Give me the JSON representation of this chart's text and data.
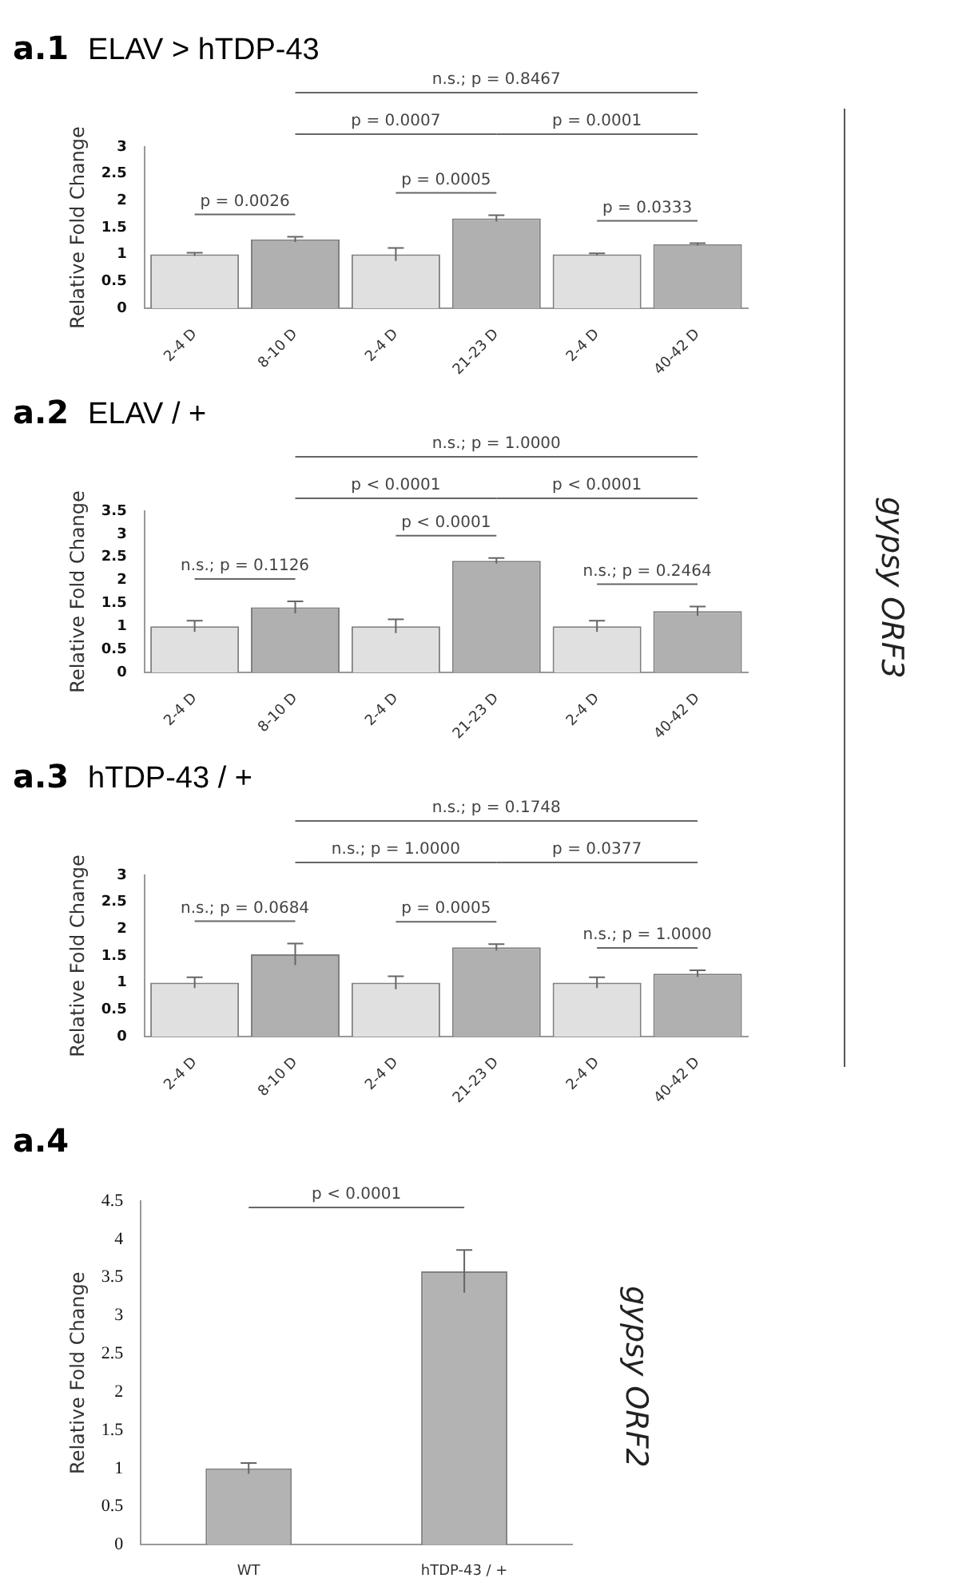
{
  "chart_data": [
    {
      "type": "bar",
      "title": "a.1",
      "subtitle": "ELAV > hTDP-43",
      "ylabel": "Relative Fold Change",
      "categories": [
        "2-4 D",
        "8-10 D",
        "2-4 D",
        "21-23 D",
        "2-4 D",
        "40-42 D"
      ],
      "values": [
        1.0,
        1.28,
        1.0,
        1.67,
        1.0,
        1.19
      ],
      "errors": [
        0.03,
        0.05,
        0.12,
        0.06,
        0.02,
        0.02
      ],
      "colors": [
        "#e0e0e0",
        "#b0b0b0",
        "#e0e0e0",
        "#b0b0b0",
        "#e0e0e0",
        "#b0b0b0"
      ],
      "ylim": [
        0,
        3
      ],
      "yticks": [
        0,
        0.5,
        1,
        1.5,
        2,
        2.5,
        3
      ],
      "annotations": [
        "n.s.; p = 0.8467",
        "p = 0.0007",
        "p = 0.0001",
        "p = 0.0005",
        "p = 0.0026",
        "p = 0.0333"
      ]
    },
    {
      "type": "bar",
      "title": "a.2",
      "subtitle": "ELAV / +",
      "ylabel": "Relative Fold Change",
      "categories": [
        "2-4 D",
        "8-10 D",
        "2-4 D",
        "21-23 D",
        "2-4 D",
        "40-42 D"
      ],
      "values": [
        1.0,
        1.41,
        1.0,
        2.42,
        1.0,
        1.33
      ],
      "errors": [
        0.12,
        0.13,
        0.15,
        0.06,
        0.12,
        0.1
      ],
      "colors": [
        "#e0e0e0",
        "#b0b0b0",
        "#e0e0e0",
        "#b0b0b0",
        "#e0e0e0",
        "#b0b0b0"
      ],
      "ylim": [
        0,
        3.5
      ],
      "yticks": [
        0,
        0.5,
        1,
        1.5,
        2,
        2.5,
        3,
        3.5
      ],
      "annotations": [
        "n.s.; p = 1.0000",
        "p < 0.0001",
        "p < 0.0001",
        "p < 0.0001",
        "n.s.; p = 0.1126",
        "n.s.; p = 0.2464",
        "gypsy ORF3"
      ]
    },
    {
      "type": "bar",
      "title": "a.3",
      "subtitle": "hTDP-43 / +",
      "ylabel": "Relative Fold Change",
      "categories": [
        "2-4 D",
        "8-10 D",
        "2-4 D",
        "21-23 D",
        "2-4 D",
        "40-42 D"
      ],
      "values": [
        1.0,
        1.53,
        1.0,
        1.66,
        1.0,
        1.17
      ],
      "errors": [
        0.1,
        0.2,
        0.12,
        0.06,
        0.1,
        0.06
      ],
      "colors": [
        "#e0e0e0",
        "#b0b0b0",
        "#e0e0e0",
        "#b0b0b0",
        "#e0e0e0",
        "#b0b0b0"
      ],
      "ylim": [
        0,
        3
      ],
      "yticks": [
        0,
        0.5,
        1,
        1.5,
        2,
        2.5,
        3
      ],
      "annotations": [
        "n.s.; p = 0.1748",
        "n.s.; p = 1.0000",
        "p = 0.0377",
        "p = 0.0005",
        "n.s.; p = 0.0684",
        "n.s.; p = 1.0000"
      ]
    },
    {
      "type": "bar",
      "title": "a.4",
      "ylabel": "Relative Fold Change",
      "categories": [
        "WT",
        "hTDP-43 / +"
      ],
      "values": [
        1.0,
        3.58
      ],
      "errors": [
        0.07,
        0.28
      ],
      "colors": [
        "#b3b3b3",
        "#b3b3b3"
      ],
      "ylim": [
        0,
        4.5
      ],
      "yticks": [
        0,
        0.5,
        1,
        1.5,
        2,
        2.5,
        3,
        3.5,
        4,
        4.5
      ],
      "annotations": [
        "p < 0.0001",
        "gypsy ORF2"
      ]
    }
  ]
}
